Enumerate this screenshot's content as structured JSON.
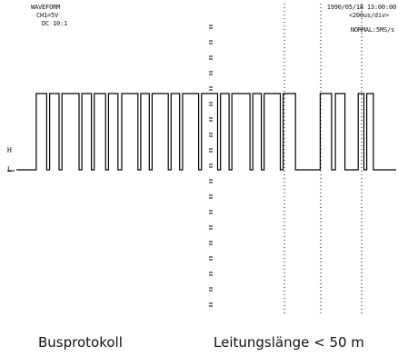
{
  "scope": {
    "top_left": [
      "WAVEFORM",
      "CH1=5V",
      "DC 10:1"
    ],
    "top_right": [
      "1990/05/18 13:00:00",
      "<200us/div>",
      "NORMAL:5MS/s"
    ],
    "level_marks": {
      "high": "H",
      "low": "L"
    }
  },
  "captions": {
    "left": "Busprotokoll",
    "right": "Leitungslänge < 50 m"
  },
  "colors": {
    "trace": "#000000",
    "grid": "#000000",
    "background": "#ffffff"
  },
  "chart_data": {
    "type": "line",
    "title": "",
    "xlabel": "",
    "ylabel": "",
    "time_per_div_us": 200,
    "volts_per_div": 5,
    "x_range_us": [
      0,
      2000
    ],
    "levels": {
      "low": 0,
      "high": 1
    },
    "grid": "dotted",
    "segments": [
      [
        0,
        0
      ],
      [
        105,
        0
      ],
      [
        105,
        1
      ],
      [
        160,
        1
      ],
      [
        160,
        0
      ],
      [
        175,
        0
      ],
      [
        175,
        1
      ],
      [
        225,
        1
      ],
      [
        225,
        0
      ],
      [
        240,
        0
      ],
      [
        240,
        1
      ],
      [
        330,
        1
      ],
      [
        330,
        0
      ],
      [
        345,
        0
      ],
      [
        345,
        1
      ],
      [
        395,
        1
      ],
      [
        395,
        0
      ],
      [
        410,
        0
      ],
      [
        410,
        1
      ],
      [
        470,
        1
      ],
      [
        470,
        0
      ],
      [
        485,
        0
      ],
      [
        485,
        1
      ],
      [
        535,
        1
      ],
      [
        535,
        0
      ],
      [
        555,
        0
      ],
      [
        555,
        1
      ],
      [
        640,
        1
      ],
      [
        640,
        0
      ],
      [
        655,
        0
      ],
      [
        655,
        1
      ],
      [
        700,
        1
      ],
      [
        700,
        0
      ],
      [
        715,
        0
      ],
      [
        715,
        1
      ],
      [
        800,
        1
      ],
      [
        800,
        0
      ],
      [
        815,
        0
      ],
      [
        815,
        1
      ],
      [
        860,
        1
      ],
      [
        860,
        0
      ],
      [
        875,
        0
      ],
      [
        875,
        1
      ],
      [
        960,
        1
      ],
      [
        960,
        0
      ],
      [
        975,
        0
      ],
      [
        975,
        1
      ],
      [
        1060,
        1
      ],
      [
        1060,
        0
      ],
      [
        1075,
        0
      ],
      [
        1075,
        1
      ],
      [
        1120,
        1
      ],
      [
        1120,
        0
      ],
      [
        1135,
        0
      ],
      [
        1135,
        1
      ],
      [
        1230,
        1
      ],
      [
        1230,
        0
      ],
      [
        1245,
        0
      ],
      [
        1245,
        1
      ],
      [
        1290,
        1
      ],
      [
        1290,
        0
      ],
      [
        1305,
        0
      ],
      [
        1305,
        1
      ],
      [
        1390,
        1
      ],
      [
        1390,
        0
      ],
      [
        1405,
        0
      ],
      [
        1405,
        1
      ],
      [
        1470,
        1
      ],
      [
        1470,
        0
      ],
      [
        1600,
        0
      ],
      [
        1600,
        1
      ],
      [
        1660,
        1
      ],
      [
        1660,
        0
      ],
      [
        1680,
        0
      ],
      [
        1680,
        1
      ],
      [
        1730,
        1
      ],
      [
        1730,
        0
      ],
      [
        1800,
        0
      ],
      [
        1800,
        1
      ],
      [
        1830,
        1
      ],
      [
        1830,
        0
      ],
      [
        1845,
        0
      ],
      [
        1845,
        1
      ],
      [
        1880,
        1
      ],
      [
        1880,
        0
      ],
      [
        2000,
        0
      ]
    ]
  }
}
